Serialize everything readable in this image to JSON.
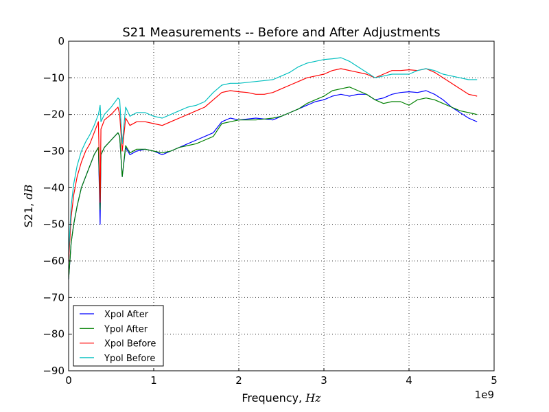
{
  "chart_data": {
    "type": "line",
    "title": "S21 Measurements -- Before and After Adjustments",
    "xlabel": "Frequency,",
    "xlabel_unit": "Hz",
    "ylabel": "S21,",
    "ylabel_unit": "dB",
    "x_multiplier_label": "1e9",
    "xlim": [
      0,
      5
    ],
    "ylim": [
      -90,
      0
    ],
    "x_ticks": [
      0,
      1,
      2,
      3,
      4,
      5
    ],
    "x_tick_labels": [
      "0",
      "1",
      "2",
      "3",
      "4",
      "5"
    ],
    "y_ticks": [
      0,
      -10,
      -20,
      -30,
      -40,
      -50,
      -60,
      -70,
      -80,
      -90
    ],
    "y_tick_labels": [
      "0",
      "−10",
      "−20",
      "−30",
      "−40",
      "−50",
      "−60",
      "−70",
      "−80",
      "−90"
    ],
    "grid": true,
    "legend_position": "lower-left",
    "series": [
      {
        "name": "Xpol After",
        "color": "#0000ff",
        "points": [
          [
            0,
            -65
          ],
          [
            0.03,
            -55
          ],
          [
            0.06,
            -50
          ],
          [
            0.1,
            -45
          ],
          [
            0.15,
            -40
          ],
          [
            0.2,
            -37
          ],
          [
            0.25,
            -34
          ],
          [
            0.3,
            -31
          ],
          [
            0.35,
            -29
          ],
          [
            0.37,
            -50
          ],
          [
            0.38,
            -31
          ],
          [
            0.42,
            -29
          ],
          [
            0.5,
            -27
          ],
          [
            0.58,
            -25
          ],
          [
            0.6,
            -26
          ],
          [
            0.63,
            -37
          ],
          [
            0.67,
            -29
          ],
          [
            0.72,
            -31
          ],
          [
            0.8,
            -30
          ],
          [
            0.9,
            -29.5
          ],
          [
            1.0,
            -30
          ],
          [
            1.1,
            -31
          ],
          [
            1.2,
            -30
          ],
          [
            1.3,
            -29
          ],
          [
            1.4,
            -28
          ],
          [
            1.5,
            -27
          ],
          [
            1.6,
            -26
          ],
          [
            1.7,
            -25
          ],
          [
            1.8,
            -22
          ],
          [
            1.9,
            -21
          ],
          [
            2.0,
            -21.5
          ],
          [
            2.2,
            -21
          ],
          [
            2.4,
            -21.5
          ],
          [
            2.5,
            -20.5
          ],
          [
            2.6,
            -19.5
          ],
          [
            2.7,
            -18.5
          ],
          [
            2.8,
            -17.5
          ],
          [
            2.9,
            -16.5
          ],
          [
            3.0,
            -16
          ],
          [
            3.1,
            -15
          ],
          [
            3.2,
            -14.5
          ],
          [
            3.3,
            -15
          ],
          [
            3.4,
            -14.5
          ],
          [
            3.5,
            -14.5
          ],
          [
            3.6,
            -16
          ],
          [
            3.7,
            -15.5
          ],
          [
            3.8,
            -14.5
          ],
          [
            3.9,
            -14
          ],
          [
            4.0,
            -13.8
          ],
          [
            4.1,
            -14
          ],
          [
            4.2,
            -13.5
          ],
          [
            4.3,
            -14.5
          ],
          [
            4.4,
            -16
          ],
          [
            4.5,
            -18
          ],
          [
            4.6,
            -19.5
          ],
          [
            4.7,
            -21
          ],
          [
            4.8,
            -22
          ]
        ]
      },
      {
        "name": "Ypol After",
        "color": "#008000",
        "points": [
          [
            0,
            -65
          ],
          [
            0.03,
            -55
          ],
          [
            0.06,
            -50
          ],
          [
            0.1,
            -45
          ],
          [
            0.15,
            -40
          ],
          [
            0.2,
            -37
          ],
          [
            0.25,
            -34
          ],
          [
            0.3,
            -31
          ],
          [
            0.35,
            -29
          ],
          [
            0.37,
            -46
          ],
          [
            0.38,
            -31
          ],
          [
            0.42,
            -29
          ],
          [
            0.5,
            -27
          ],
          [
            0.58,
            -25
          ],
          [
            0.6,
            -26
          ],
          [
            0.63,
            -37
          ],
          [
            0.67,
            -28.5
          ],
          [
            0.72,
            -30.5
          ],
          [
            0.8,
            -29.5
          ],
          [
            0.9,
            -29.5
          ],
          [
            1.0,
            -30
          ],
          [
            1.1,
            -30.5
          ],
          [
            1.2,
            -30
          ],
          [
            1.3,
            -29
          ],
          [
            1.4,
            -28.5
          ],
          [
            1.5,
            -28
          ],
          [
            1.6,
            -27
          ],
          [
            1.7,
            -26
          ],
          [
            1.8,
            -22.5
          ],
          [
            1.9,
            -22
          ],
          [
            2.0,
            -21.5
          ],
          [
            2.2,
            -21.5
          ],
          [
            2.4,
            -21
          ],
          [
            2.5,
            -20.5
          ],
          [
            2.6,
            -19.5
          ],
          [
            2.7,
            -18.5
          ],
          [
            2.8,
            -17
          ],
          [
            2.9,
            -16
          ],
          [
            3.0,
            -15
          ],
          [
            3.1,
            -13.5
          ],
          [
            3.2,
            -13
          ],
          [
            3.3,
            -12.5
          ],
          [
            3.4,
            -13.5
          ],
          [
            3.5,
            -14.5
          ],
          [
            3.6,
            -16
          ],
          [
            3.7,
            -17
          ],
          [
            3.8,
            -16.5
          ],
          [
            3.9,
            -16.5
          ],
          [
            4.0,
            -17.5
          ],
          [
            4.1,
            -16
          ],
          [
            4.2,
            -15.5
          ],
          [
            4.3,
            -16
          ],
          [
            4.4,
            -17
          ],
          [
            4.5,
            -18
          ],
          [
            4.6,
            -19
          ],
          [
            4.7,
            -19.5
          ],
          [
            4.8,
            -20
          ]
        ]
      },
      {
        "name": "Xpol Before",
        "color": "#ff0000",
        "points": [
          [
            0,
            -60
          ],
          [
            0.03,
            -48
          ],
          [
            0.06,
            -42
          ],
          [
            0.1,
            -37
          ],
          [
            0.15,
            -33
          ],
          [
            0.2,
            -30
          ],
          [
            0.25,
            -28
          ],
          [
            0.3,
            -25
          ],
          [
            0.35,
            -22
          ],
          [
            0.37,
            -44
          ],
          [
            0.38,
            -24
          ],
          [
            0.42,
            -21.5
          ],
          [
            0.5,
            -20
          ],
          [
            0.58,
            -18
          ],
          [
            0.6,
            -20
          ],
          [
            0.63,
            -30
          ],
          [
            0.67,
            -21
          ],
          [
            0.72,
            -23
          ],
          [
            0.8,
            -22
          ],
          [
            0.9,
            -22
          ],
          [
            1.0,
            -22.5
          ],
          [
            1.1,
            -23
          ],
          [
            1.2,
            -22
          ],
          [
            1.3,
            -21
          ],
          [
            1.4,
            -20
          ],
          [
            1.5,
            -19
          ],
          [
            1.6,
            -18
          ],
          [
            1.7,
            -16
          ],
          [
            1.8,
            -14
          ],
          [
            1.9,
            -13.5
          ],
          [
            2.0,
            -13.8
          ],
          [
            2.1,
            -14
          ],
          [
            2.2,
            -14.5
          ],
          [
            2.3,
            -14.5
          ],
          [
            2.4,
            -14
          ],
          [
            2.5,
            -13
          ],
          [
            2.6,
            -12
          ],
          [
            2.7,
            -11
          ],
          [
            2.8,
            -10
          ],
          [
            2.9,
            -9.5
          ],
          [
            3.0,
            -9
          ],
          [
            3.1,
            -8
          ],
          [
            3.2,
            -7.5
          ],
          [
            3.3,
            -8
          ],
          [
            3.4,
            -8.5
          ],
          [
            3.5,
            -9
          ],
          [
            3.6,
            -10
          ],
          [
            3.7,
            -9
          ],
          [
            3.8,
            -8
          ],
          [
            3.9,
            -8
          ],
          [
            4.0,
            -7.8
          ],
          [
            4.1,
            -8
          ],
          [
            4.2,
            -7.5
          ],
          [
            4.3,
            -8.5
          ],
          [
            4.4,
            -10
          ],
          [
            4.5,
            -11.5
          ],
          [
            4.6,
            -13
          ],
          [
            4.7,
            -14.5
          ],
          [
            4.8,
            -15
          ]
        ]
      },
      {
        "name": "Ypol Before",
        "color": "#00bfbf",
        "points": [
          [
            0,
            -58
          ],
          [
            0.03,
            -45
          ],
          [
            0.06,
            -39
          ],
          [
            0.1,
            -34
          ],
          [
            0.15,
            -30
          ],
          [
            0.2,
            -27.5
          ],
          [
            0.25,
            -25.5
          ],
          [
            0.3,
            -23
          ],
          [
            0.35,
            -20
          ],
          [
            0.37,
            -17.5
          ],
          [
            0.38,
            -22
          ],
          [
            0.42,
            -20
          ],
          [
            0.5,
            -18
          ],
          [
            0.58,
            -15.5
          ],
          [
            0.6,
            -16
          ],
          [
            0.63,
            -28
          ],
          [
            0.67,
            -18
          ],
          [
            0.72,
            -20.5
          ],
          [
            0.8,
            -19.5
          ],
          [
            0.9,
            -19.5
          ],
          [
            1.0,
            -20.5
          ],
          [
            1.1,
            -21
          ],
          [
            1.2,
            -20
          ],
          [
            1.3,
            -19
          ],
          [
            1.4,
            -18
          ],
          [
            1.5,
            -17.5
          ],
          [
            1.6,
            -16.5
          ],
          [
            1.7,
            -14
          ],
          [
            1.8,
            -12
          ],
          [
            1.9,
            -11.5
          ],
          [
            2.0,
            -11.5
          ],
          [
            2.2,
            -11
          ],
          [
            2.4,
            -10.5
          ],
          [
            2.5,
            -9.5
          ],
          [
            2.6,
            -8.5
          ],
          [
            2.7,
            -7
          ],
          [
            2.8,
            -6
          ],
          [
            2.9,
            -5.5
          ],
          [
            3.0,
            -5
          ],
          [
            3.1,
            -4.8
          ],
          [
            3.2,
            -4.5
          ],
          [
            3.3,
            -5.5
          ],
          [
            3.4,
            -7
          ],
          [
            3.5,
            -8.5
          ],
          [
            3.6,
            -10
          ],
          [
            3.7,
            -9.5
          ],
          [
            3.8,
            -9
          ],
          [
            3.9,
            -9
          ],
          [
            4.0,
            -9
          ],
          [
            4.1,
            -8
          ],
          [
            4.2,
            -7.5
          ],
          [
            4.3,
            -8
          ],
          [
            4.4,
            -9
          ],
          [
            4.5,
            -9.5
          ],
          [
            4.6,
            -10
          ],
          [
            4.7,
            -10.5
          ],
          [
            4.8,
            -10.5
          ]
        ]
      }
    ]
  }
}
